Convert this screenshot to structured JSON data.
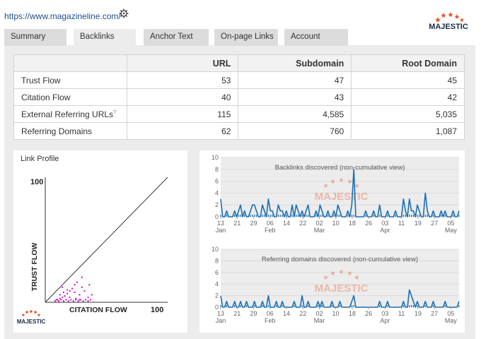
{
  "header": {
    "site_url": "https://www.magazineline.com/",
    "settings_icon": "gear-icon",
    "logo_text": "MAJESTIC"
  },
  "tabs": [
    {
      "label": "Summary",
      "active": false
    },
    {
      "label": "Backlinks",
      "active": true
    },
    {
      "label": "Anchor Text",
      "active": false
    },
    {
      "label": "On-page Links",
      "active": false
    },
    {
      "label": "Account",
      "active": false
    }
  ],
  "metrics": {
    "columns": [
      "URL",
      "Subdomain",
      "Root Domain"
    ],
    "rows": [
      {
        "label": "Trust Flow",
        "values": [
          "53",
          "47",
          "45"
        ],
        "help": ""
      },
      {
        "label": "Citation Flow",
        "values": [
          "40",
          "43",
          "42"
        ],
        "help": ""
      },
      {
        "label": "External Referring URLs",
        "values": [
          "115",
          "4,585",
          "5,035"
        ],
        "help": "?"
      },
      {
        "label": "Referring Domains",
        "values": [
          "62",
          "760",
          "1,087"
        ],
        "help": ""
      }
    ]
  },
  "link_profile": {
    "title": "Link Profile",
    "y_label": "TRUST FLOW",
    "x_label": "CITATION FLOW",
    "y_max_label": "100",
    "x_max_label": "100",
    "logo_text": "MAJESTIC",
    "point_color": "#cc00cc",
    "points": [
      [
        10,
        2
      ],
      [
        12,
        3
      ],
      [
        14,
        4
      ],
      [
        16,
        5
      ],
      [
        18,
        7
      ],
      [
        20,
        9
      ],
      [
        22,
        11
      ],
      [
        24,
        14
      ],
      [
        26,
        16
      ],
      [
        30,
        20
      ],
      [
        12,
        6
      ],
      [
        15,
        8
      ],
      [
        18,
        10
      ],
      [
        20,
        4
      ],
      [
        25,
        3
      ],
      [
        28,
        6
      ],
      [
        32,
        9
      ],
      [
        35,
        4
      ],
      [
        38,
        6
      ],
      [
        28,
        2
      ],
      [
        8,
        1
      ],
      [
        9,
        2
      ],
      [
        11,
        1
      ],
      [
        13,
        2
      ],
      [
        15,
        1
      ],
      [
        17,
        2
      ],
      [
        19,
        1
      ],
      [
        21,
        2
      ],
      [
        23,
        1
      ],
      [
        25,
        2
      ],
      [
        27,
        1
      ],
      [
        29,
        2
      ],
      [
        31,
        1
      ],
      [
        33,
        2
      ],
      [
        35,
        1
      ],
      [
        37,
        2
      ],
      [
        14,
        12
      ],
      [
        24,
        8
      ],
      [
        30,
        12
      ],
      [
        36,
        14
      ]
    ]
  },
  "chart_data": [
    {
      "type": "line",
      "title": "Backlinks discovered (non-cumulative view)",
      "watermark": "MAJESTIC",
      "ylim": [
        0,
        10
      ],
      "y_ticks": [
        "0",
        "2",
        "4",
        "6",
        "8",
        "10"
      ],
      "x_ticks": [
        {
          "day": "13",
          "month": "Jan"
        },
        {
          "day": "21",
          "month": ""
        },
        {
          "day": "29",
          "month": ""
        },
        {
          "day": "06",
          "month": "Feb"
        },
        {
          "day": "14",
          "month": ""
        },
        {
          "day": "22",
          "month": ""
        },
        {
          "day": "02",
          "month": "Mar"
        },
        {
          "day": "10",
          "month": ""
        },
        {
          "day": "18",
          "month": ""
        },
        {
          "day": "26",
          "month": ""
        },
        {
          "day": "03",
          "month": "Apr"
        },
        {
          "day": "11",
          "month": ""
        },
        {
          "day": "19",
          "month": ""
        },
        {
          "day": "27",
          "month": ""
        },
        {
          "day": "05",
          "month": "May"
        }
      ],
      "color": "#1a6fb3",
      "values": [
        3,
        0,
        0,
        1,
        0,
        0,
        0,
        1,
        0,
        1,
        2,
        0,
        1,
        0,
        0,
        1,
        2,
        2,
        1,
        0,
        0,
        2,
        1,
        0,
        3,
        1,
        1,
        0,
        0,
        2,
        1,
        1,
        0,
        1,
        0,
        0,
        2,
        0,
        2,
        1,
        0,
        1,
        0,
        1,
        2,
        0,
        0,
        0,
        1,
        0,
        2,
        1,
        0,
        0,
        1,
        0,
        0,
        1,
        0,
        2,
        1,
        0,
        0,
        0,
        1,
        0,
        2,
        8,
        0,
        0,
        0,
        0,
        0,
        1,
        0,
        0,
        0,
        1,
        0,
        0,
        2,
        0,
        0,
        0,
        1,
        0,
        0,
        0,
        1,
        0,
        0,
        0,
        3,
        1,
        0,
        3,
        1,
        1,
        0,
        2,
        1,
        0,
        0,
        4,
        1,
        0,
        0,
        1,
        0,
        0,
        0,
        1,
        0,
        1,
        0,
        0,
        0,
        1,
        0,
        0,
        1
      ],
      "volume": [
        1,
        0,
        0,
        1,
        0,
        0,
        0,
        1,
        0,
        1,
        1,
        0,
        1,
        0,
        0,
        1,
        1,
        1,
        1,
        0,
        0,
        1,
        1,
        0,
        1,
        1,
        1,
        0,
        0,
        1,
        1,
        1,
        0,
        1,
        0,
        0,
        1,
        0,
        1,
        1,
        0,
        1,
        0,
        1,
        1,
        0,
        0,
        0,
        1,
        0,
        1,
        1,
        0,
        0,
        1,
        0,
        0,
        1,
        0,
        1,
        1,
        0,
        0,
        0,
        1,
        0,
        1,
        1,
        0,
        0,
        0,
        0,
        0,
        1,
        0,
        0,
        0,
        1,
        0,
        0,
        1,
        0,
        0,
        0,
        1,
        0,
        0,
        0,
        1,
        0,
        0,
        0,
        1,
        1,
        0,
        1,
        1,
        1,
        0,
        1,
        1,
        0,
        0,
        1,
        1,
        0,
        0,
        1,
        0,
        0,
        0,
        1,
        0,
        1,
        0,
        0,
        0,
        1,
        0,
        0,
        1
      ]
    },
    {
      "type": "line",
      "title": "Referring domains discovered (non-cumulative view)",
      "watermark": "MAJESTIC",
      "ylim": [
        0,
        10
      ],
      "y_ticks": [
        "0",
        "2",
        "4",
        "6",
        "8",
        "10"
      ],
      "x_ticks": [
        {
          "day": "13",
          "month": "Jan"
        },
        {
          "day": "21",
          "month": ""
        },
        {
          "day": "29",
          "month": ""
        },
        {
          "day": "06",
          "month": "Feb"
        },
        {
          "day": "14",
          "month": ""
        },
        {
          "day": "22",
          "month": ""
        },
        {
          "day": "02",
          "month": "Mar"
        },
        {
          "day": "10",
          "month": ""
        },
        {
          "day": "18",
          "month": ""
        },
        {
          "day": "26",
          "month": ""
        },
        {
          "day": "03",
          "month": "Apr"
        },
        {
          "day": "11",
          "month": ""
        },
        {
          "day": "19",
          "month": ""
        },
        {
          "day": "27",
          "month": ""
        },
        {
          "day": "05",
          "month": "May"
        }
      ],
      "color": "#1a6fb3",
      "values": [
        2,
        0,
        0,
        1,
        0,
        0,
        0,
        1,
        0,
        0,
        1,
        0,
        0,
        1,
        0,
        0,
        0,
        1,
        0,
        0,
        0,
        1,
        0,
        0,
        2,
        0,
        0,
        0,
        1,
        0,
        0,
        1,
        0,
        0,
        0,
        0,
        0,
        1,
        0,
        0,
        0,
        2,
        0,
        0,
        1,
        0,
        0,
        0,
        0,
        1,
        0,
        1,
        0,
        0,
        0,
        0,
        1,
        0,
        0,
        0,
        1,
        0,
        0,
        0,
        0,
        0,
        1,
        2,
        0,
        0,
        0,
        0,
        0,
        0,
        0,
        0,
        0,
        0,
        0,
        0,
        1,
        0,
        0,
        0,
        1,
        0,
        0,
        0,
        0,
        0,
        0,
        0,
        1,
        0,
        0,
        3,
        2,
        1,
        0,
        1,
        0,
        0,
        0,
        1,
        0,
        0,
        0,
        1,
        0,
        0,
        0,
        0,
        0,
        1,
        0,
        0,
        0,
        0,
        0,
        0,
        1
      ],
      "volume": [
        1,
        0,
        0,
        1,
        0,
        0,
        0,
        1,
        0,
        0,
        1,
        0,
        0,
        1,
        0,
        0,
        0,
        1,
        0,
        0,
        0,
        1,
        0,
        0,
        1,
        0,
        0,
        0,
        1,
        0,
        0,
        1,
        0,
        0,
        0,
        0,
        0,
        1,
        0,
        0,
        0,
        1,
        0,
        0,
        1,
        0,
        0,
        0,
        0,
        1,
        0,
        1,
        0,
        0,
        0,
        0,
        1,
        0,
        0,
        0,
        1,
        0,
        0,
        0,
        0,
        0,
        1,
        1,
        0,
        0,
        0,
        0,
        0,
        0,
        0,
        0,
        0,
        0,
        0,
        0,
        1,
        0,
        0,
        0,
        1,
        0,
        0,
        0,
        0,
        0,
        0,
        0,
        1,
        0,
        0,
        1,
        1,
        1,
        0,
        1,
        0,
        0,
        0,
        1,
        0,
        0,
        0,
        1,
        0,
        0,
        0,
        0,
        0,
        1,
        0,
        0,
        0,
        0,
        0,
        0,
        1
      ]
    }
  ]
}
